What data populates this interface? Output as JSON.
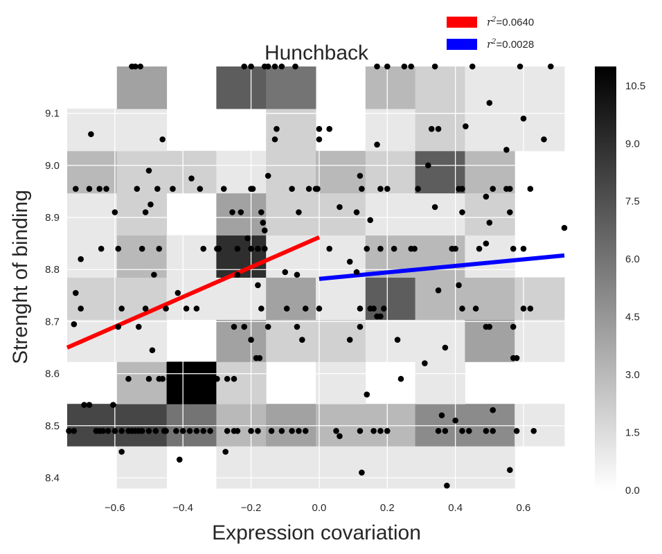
{
  "chart_data": {
    "type": "heatmap",
    "title": "Hunchback",
    "xlabel": "Expression covariation",
    "ylabel": "Strenght of binding",
    "xlim": [
      -0.74,
      0.72
    ],
    "ylim": [
      8.38,
      9.19
    ],
    "xticks": [
      -0.6,
      -0.4,
      -0.2,
      0.0,
      0.2,
      0.4,
      0.6
    ],
    "xtick_labels": [
      "−0.6",
      "−0.4",
      "−0.2",
      "0.0",
      "0.2",
      "0.4",
      "0.6"
    ],
    "yticks": [
      8.4,
      8.5,
      8.6,
      8.7,
      8.8,
      8.9,
      9.0,
      9.1
    ],
    "ytick_labels": [
      "8.4",
      "8.5",
      "8.6",
      "8.7",
      "8.8",
      "8.9",
      "9.0",
      "9.1"
    ],
    "grid": true,
    "legend_position": "above-top-right",
    "heatmap": {
      "x_edges": [
        -0.74,
        -0.594,
        -0.448,
        -0.302,
        -0.156,
        -0.01,
        0.136,
        0.282,
        0.428,
        0.574,
        0.72
      ],
      "y_edges": [
        8.38,
        8.461,
        8.542,
        8.623,
        8.704,
        8.785,
        8.866,
        8.947,
        9.028,
        9.109,
        9.19
      ],
      "colorbar_max": 11,
      "colorbar_ticks": [
        0.0,
        1.5,
        3.0,
        4.5,
        6.0,
        7.5,
        9.0,
        10.5
      ],
      "colorbar_tick_labels": [
        "0.0",
        "1.5",
        "3.0",
        "4.5",
        "6.0",
        "7.5",
        "9.0",
        "10.5"
      ],
      "counts": [
        [
          0,
          1,
          0,
          1,
          1,
          1,
          1,
          1,
          1,
          0
        ],
        [
          8,
          8,
          6,
          3,
          4,
          3,
          3,
          5,
          5,
          1
        ],
        [
          0,
          3,
          11,
          2,
          0,
          1,
          0,
          1,
          0,
          0
        ],
        [
          1,
          1,
          0,
          4,
          2,
          2,
          1,
          1,
          4,
          1
        ],
        [
          2,
          2,
          1,
          1,
          4,
          1,
          7,
          3,
          3,
          2
        ],
        [
          1,
          3,
          1,
          9,
          1,
          1,
          3,
          3,
          1,
          0
        ],
        [
          1,
          2,
          0,
          4,
          2,
          2,
          1,
          1,
          2,
          0
        ],
        [
          3,
          2,
          2,
          1,
          2,
          3,
          2,
          7,
          3,
          0
        ],
        [
          1,
          1,
          0,
          0,
          2,
          0,
          1,
          2,
          1,
          1
        ],
        [
          0,
          4,
          0,
          7,
          6,
          0,
          3,
          2,
          1,
          1
        ]
      ]
    },
    "scatter_points": [
      [
        -0.735,
        8.49
      ],
      [
        -0.72,
        8.49
      ],
      [
        -0.69,
        8.54
      ],
      [
        -0.675,
        8.54
      ],
      [
        -0.655,
        8.49
      ],
      [
        -0.645,
        8.49
      ],
      [
        -0.635,
        8.49
      ],
      [
        -0.62,
        8.49
      ],
      [
        -0.605,
        8.54
      ],
      [
        -0.6,
        8.49
      ],
      [
        -0.58,
        8.49
      ],
      [
        -0.56,
        8.49
      ],
      [
        -0.55,
        8.49
      ],
      [
        -0.54,
        8.49
      ],
      [
        -0.53,
        8.49
      ],
      [
        -0.52,
        8.49
      ],
      [
        -0.5,
        8.49
      ],
      [
        -0.48,
        8.49
      ],
      [
        -0.455,
        8.49
      ],
      [
        -0.45,
        8.49
      ],
      [
        -0.42,
        8.49
      ],
      [
        -0.4,
        8.49
      ],
      [
        -0.38,
        8.49
      ],
      [
        -0.36,
        8.49
      ],
      [
        -0.34,
        8.49
      ],
      [
        -0.32,
        8.49
      ],
      [
        -0.27,
        8.49
      ],
      [
        -0.25,
        8.49
      ],
      [
        -0.24,
        8.49
      ],
      [
        -0.2,
        8.49
      ],
      [
        -0.18,
        8.49
      ],
      [
        -0.14,
        8.49
      ],
      [
        -0.11,
        8.49
      ],
      [
        -0.08,
        8.49
      ],
      [
        -0.06,
        8.49
      ],
      [
        -0.04,
        8.49
      ],
      [
        0.05,
        8.49
      ],
      [
        0.06,
        8.48
      ],
      [
        0.12,
        8.49
      ],
      [
        0.16,
        8.49
      ],
      [
        0.18,
        8.49
      ],
      [
        0.2,
        8.49
      ],
      [
        0.35,
        8.49
      ],
      [
        0.37,
        8.49
      ],
      [
        0.42,
        8.49
      ],
      [
        0.44,
        8.49
      ],
      [
        0.49,
        8.49
      ],
      [
        0.51,
        8.49
      ],
      [
        0.58,
        8.49
      ],
      [
        0.63,
        8.49
      ],
      [
        -0.58,
        8.45
      ],
      [
        -0.41,
        8.435
      ],
      [
        -0.275,
        8.45
      ],
      [
        0.125,
        8.41
      ],
      [
        0.375,
        8.385
      ],
      [
        0.56,
        8.415
      ],
      [
        0.36,
        8.52
      ],
      [
        0.4,
        8.51
      ],
      [
        0.51,
        8.53
      ],
      [
        0.14,
        8.56
      ],
      [
        -0.56,
        8.59
      ],
      [
        -0.5,
        8.59
      ],
      [
        -0.47,
        8.59
      ],
      [
        -0.46,
        8.59
      ],
      [
        -0.44,
        8.59
      ],
      [
        -0.43,
        8.59
      ],
      [
        -0.41,
        8.59
      ],
      [
        -0.38,
        8.59
      ],
      [
        -0.36,
        8.59
      ],
      [
        -0.33,
        8.59
      ],
      [
        -0.3,
        8.59
      ],
      [
        -0.27,
        8.59
      ],
      [
        -0.25,
        8.59
      ],
      [
        0.24,
        8.59
      ],
      [
        -0.175,
        8.63
      ],
      [
        -0.185,
        8.63
      ],
      [
        0.31,
        8.62
      ],
      [
        0.37,
        8.65
      ],
      [
        0.57,
        8.63
      ],
      [
        0.58,
        8.63
      ],
      [
        -0.49,
        8.645
      ],
      [
        -0.2,
        8.665
      ],
      [
        -0.05,
        8.665
      ],
      [
        0.09,
        8.665
      ],
      [
        0.23,
        8.665
      ],
      [
        -0.72,
        8.695
      ],
      [
        -0.59,
        8.69
      ],
      [
        -0.53,
        8.69
      ],
      [
        -0.25,
        8.69
      ],
      [
        -0.22,
        8.69
      ],
      [
        -0.15,
        8.69
      ],
      [
        -0.065,
        8.69
      ],
      [
        0.12,
        8.69
      ],
      [
        0.49,
        8.69
      ],
      [
        0.5,
        8.69
      ],
      [
        0.57,
        8.69
      ],
      [
        -0.7,
        8.725
      ],
      [
        -0.58,
        8.725
      ],
      [
        -0.51,
        8.725
      ],
      [
        -0.45,
        8.725
      ],
      [
        -0.39,
        8.725
      ],
      [
        -0.36,
        8.725
      ],
      [
        -0.17,
        8.725
      ],
      [
        -0.095,
        8.725
      ],
      [
        -0.04,
        8.725
      ],
      [
        0.0,
        8.725
      ],
      [
        0.12,
        8.725
      ],
      [
        0.15,
        8.725
      ],
      [
        0.16,
        8.725
      ],
      [
        0.19,
        8.725
      ],
      [
        0.42,
        8.725
      ],
      [
        0.46,
        8.725
      ],
      [
        0.6,
        8.725
      ],
      [
        0.62,
        8.725
      ],
      [
        -0.715,
        8.755
      ],
      [
        -0.415,
        8.755
      ],
      [
        -0.18,
        8.77
      ],
      [
        0.35,
        8.76
      ],
      [
        0.41,
        8.77
      ],
      [
        0.17,
        8.71
      ],
      [
        0.18,
        8.71
      ],
      [
        -0.485,
        8.79
      ],
      [
        -0.24,
        8.79
      ],
      [
        -0.1,
        8.795
      ],
      [
        -0.065,
        8.79
      ],
      [
        -0.7,
        8.82
      ],
      [
        -0.64,
        8.84
      ],
      [
        -0.59,
        8.84
      ],
      [
        -0.52,
        8.84
      ],
      [
        -0.47,
        8.84
      ],
      [
        -0.34,
        8.84
      ],
      [
        -0.3,
        8.84
      ],
      [
        -0.295,
        8.84
      ],
      [
        -0.24,
        8.84
      ],
      [
        -0.21,
        8.86
      ],
      [
        -0.2,
        8.84
      ],
      [
        -0.18,
        8.84
      ],
      [
        -0.16,
        8.84
      ],
      [
        0.03,
        8.84
      ],
      [
        0.14,
        8.84
      ],
      [
        0.18,
        8.84
      ],
      [
        0.22,
        8.84
      ],
      [
        0.27,
        8.84
      ],
      [
        0.28,
        8.84
      ],
      [
        0.39,
        8.84
      ],
      [
        0.4,
        8.84
      ],
      [
        0.47,
        8.84
      ],
      [
        0.57,
        8.84
      ],
      [
        0.49,
        8.85
      ],
      [
        0.6,
        8.84
      ],
      [
        0.72,
        8.88
      ],
      [
        0.09,
        8.815
      ],
      [
        0.11,
        8.795
      ],
      [
        -0.51,
        8.91
      ],
      [
        -0.6,
        8.91
      ],
      [
        -0.495,
        8.925
      ],
      [
        -0.255,
        8.91
      ],
      [
        -0.23,
        8.91
      ],
      [
        -0.17,
        8.91
      ],
      [
        -0.165,
        8.89
      ],
      [
        -0.16,
        8.875
      ],
      [
        -0.06,
        8.91
      ],
      [
        0.06,
        8.92
      ],
      [
        0.11,
        8.91
      ],
      [
        0.15,
        8.895
      ],
      [
        0.34,
        8.92
      ],
      [
        0.42,
        8.91
      ],
      [
        0.5,
        8.89
      ],
      [
        0.49,
        8.94
      ],
      [
        0.56,
        8.91
      ],
      [
        -0.715,
        8.955
      ],
      [
        -0.675,
        8.955
      ],
      [
        -0.645,
        8.955
      ],
      [
        -0.625,
        8.955
      ],
      [
        -0.535,
        8.955
      ],
      [
        -0.475,
        8.955
      ],
      [
        -0.43,
        8.955
      ],
      [
        -0.375,
        8.975
      ],
      [
        -0.35,
        8.955
      ],
      [
        -0.28,
        8.955
      ],
      [
        -0.2,
        8.955
      ],
      [
        -0.195,
        8.955
      ],
      [
        -0.15,
        8.98
      ],
      [
        -0.08,
        8.955
      ],
      [
        -0.03,
        8.955
      ],
      [
        -0.01,
        8.955
      ],
      [
        -0.005,
        8.955
      ],
      [
        0.12,
        8.98
      ],
      [
        0.125,
        8.955
      ],
      [
        0.18,
        8.955
      ],
      [
        0.2,
        8.955
      ],
      [
        0.29,
        8.955
      ],
      [
        0.32,
        9.0
      ],
      [
        0.41,
        8.955
      ],
      [
        0.42,
        8.955
      ],
      [
        0.51,
        8.955
      ],
      [
        0.55,
        8.955
      ],
      [
        0.56,
        8.955
      ],
      [
        0.62,
        8.955
      ],
      [
        -0.5,
        8.99
      ],
      [
        -0.67,
        9.06
      ],
      [
        -0.46,
        9.05
      ],
      [
        -0.13,
        9.05
      ],
      [
        -0.125,
        9.07
      ],
      [
        0.0,
        9.05
      ],
      [
        0.0,
        9.07
      ],
      [
        0.03,
        9.07
      ],
      [
        0.17,
        9.04
      ],
      [
        0.33,
        9.07
      ],
      [
        0.35,
        9.07
      ],
      [
        0.43,
        9.075
      ],
      [
        0.55,
        9.03
      ],
      [
        0.6,
        9.09
      ],
      [
        0.66,
        9.05
      ],
      [
        0.5,
        9.12
      ],
      [
        -0.55,
        9.19
      ],
      [
        -0.54,
        9.19
      ],
      [
        -0.525,
        9.19
      ],
      [
        -0.22,
        9.19
      ],
      [
        -0.2,
        9.19
      ],
      [
        -0.16,
        9.19
      ],
      [
        -0.15,
        9.19
      ],
      [
        -0.13,
        9.19
      ],
      [
        -0.11,
        9.19
      ],
      [
        -0.07,
        9.19
      ],
      [
        0.17,
        9.19
      ],
      [
        0.2,
        9.19
      ],
      [
        0.25,
        9.19
      ],
      [
        0.27,
        9.19
      ],
      [
        0.34,
        9.19
      ],
      [
        0.45,
        9.19
      ],
      [
        0.59,
        9.19
      ],
      [
        0.68,
        9.19
      ]
    ],
    "series": [
      {
        "name": "$r^2$=0.0640",
        "label_text": "=0.0640",
        "color": "#ff0000",
        "x": [
          -0.74,
          0.0
        ],
        "y": [
          8.65,
          8.862
        ]
      },
      {
        "name": "$r^2$=0.0028",
        "label_text": "=0.0028",
        "color": "#0000ff",
        "x": [
          0.0,
          0.72
        ],
        "y": [
          8.782,
          8.827
        ]
      }
    ],
    "legend_symbol": "r",
    "legend_superscript": "2"
  }
}
